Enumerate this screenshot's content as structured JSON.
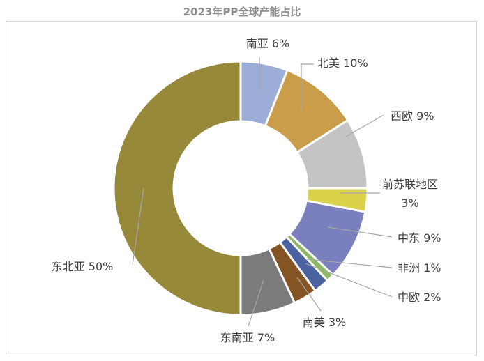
{
  "chart_data": {
    "type": "pie",
    "donut": true,
    "title": "2023年PP全球产能占比",
    "slices": [
      {
        "label": "南亚 6%",
        "value": 6,
        "color": "#9cadd8"
      },
      {
        "label": "北美 10%",
        "value": 10,
        "color": "#c99d4a"
      },
      {
        "label": "西欧 9%",
        "value": 9,
        "color": "#c4c4c4"
      },
      {
        "label": [
          "前苏联地区",
          "3%"
        ],
        "value": 3,
        "color": "#d9d24a"
      },
      {
        "label": "中东 9%",
        "value": 9,
        "color": "#7a7fbd"
      },
      {
        "label": "非洲 1%",
        "value": 1,
        "color": "#8fb866"
      },
      {
        "label": "中欧 2%",
        "value": 2,
        "color": "#4a63a0"
      },
      {
        "label": "南美 3%",
        "value": 3,
        "color": "#855424"
      },
      {
        "label": "东南亚 7%",
        "value": 7,
        "color": "#7b7b7b"
      },
      {
        "label": "东北亚 50%",
        "value": 50,
        "color": "#97893a"
      }
    ],
    "legend": "none"
  }
}
